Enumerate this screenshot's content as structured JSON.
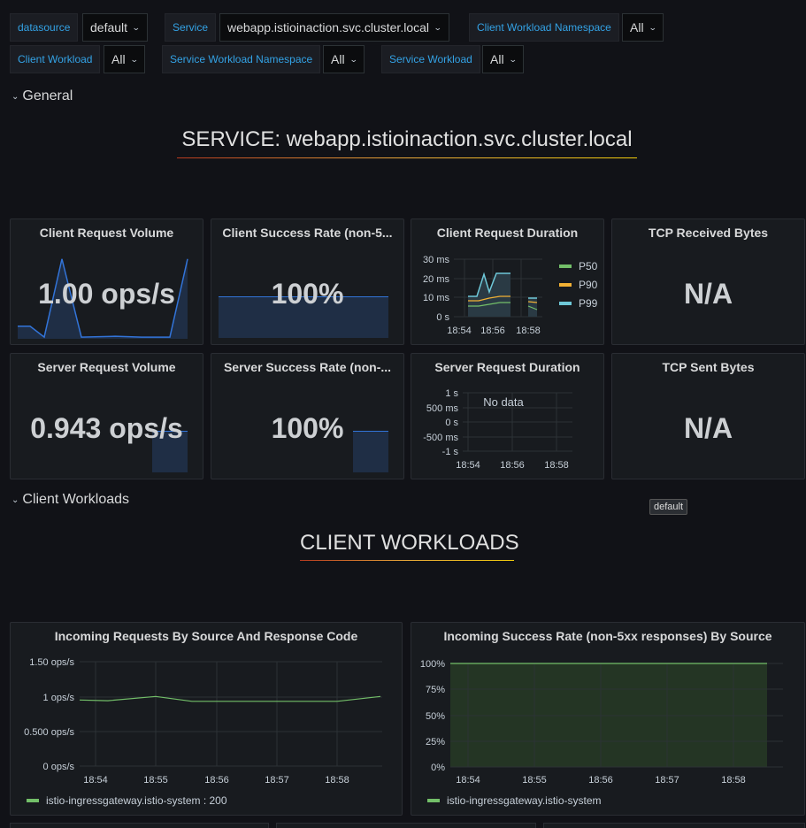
{
  "variables": {
    "datasource": {
      "label": "datasource",
      "value": "default"
    },
    "service": {
      "label": "Service",
      "value": "webapp.istioinaction.svc.cluster.local"
    },
    "client_workload_namespace": {
      "label": "Client Workload Namespace",
      "value": "All"
    },
    "client_workload": {
      "label": "Client Workload",
      "value": "All"
    },
    "service_workload_namespace": {
      "label": "Service Workload Namespace",
      "value": "All"
    },
    "service_workload": {
      "label": "Service Workload",
      "value": "All"
    }
  },
  "rows": {
    "general": "General",
    "client_workloads": "Client Workloads"
  },
  "text_panels": {
    "service_title": "SERVICE: webapp.istioinaction.svc.cluster.local",
    "client_workloads_title": "CLIENT WORKLOADS"
  },
  "tooltip": "default",
  "panels": {
    "client_request_volume": {
      "title": "Client Request Volume",
      "value": "1.00 ops/s",
      "sparkline": [
        0.15,
        0.15,
        0.02,
        0.95,
        0.02,
        0.03,
        0.02,
        0.02,
        0.02,
        0.95
      ]
    },
    "client_success_rate": {
      "title": "Client Success Rate (non-5...",
      "value": "100%"
    },
    "client_request_duration": {
      "title": "Client Request Duration",
      "y_ticks": [
        "30 ms",
        "20 ms",
        "10 ms",
        "0 s"
      ],
      "x_ticks": [
        "18:54",
        "18:56",
        "18:58"
      ],
      "legend": [
        {
          "name": "P50",
          "color": "#73bf69"
        },
        {
          "name": "P90",
          "color": "#f2b134"
        },
        {
          "name": "P99",
          "color": "#6ec8d8"
        }
      ]
    },
    "tcp_received_bytes": {
      "title": "TCP Received Bytes",
      "value": "N/A"
    },
    "server_request_volume": {
      "title": "Server Request Volume",
      "value": "0.943 ops/s"
    },
    "server_success_rate": {
      "title": "Server Success Rate (non-...",
      "value": "100%"
    },
    "server_request_duration": {
      "title": "Server Request Duration",
      "y_ticks": [
        "1 s",
        "500 ms",
        "0 s",
        "-500 ms",
        "-1 s"
      ],
      "x_ticks": [
        "18:54",
        "18:56",
        "18:58"
      ],
      "no_data": "No data"
    },
    "tcp_sent_bytes": {
      "title": "TCP Sent Bytes",
      "value": "N/A"
    },
    "incoming_requests": {
      "title": "Incoming Requests By Source And Response Code",
      "y_ticks": [
        "1.50 ops/s",
        "1 ops/s",
        "0.500 ops/s",
        "0 ops/s"
      ],
      "x_ticks": [
        "18:54",
        "18:55",
        "18:56",
        "18:57",
        "18:58"
      ],
      "legend": "istio-ingressgateway.istio-system : 200"
    },
    "incoming_success_rate": {
      "title": "Incoming Success Rate (non-5xx responses) By Source",
      "y_ticks": [
        "100%",
        "75%",
        "50%",
        "25%",
        "0%"
      ],
      "x_ticks": [
        "18:54",
        "18:55",
        "18:56",
        "18:57",
        "18:58"
      ],
      "legend": "istio-ingressgateway.istio-system"
    }
  },
  "chart_data": [
    {
      "type": "line",
      "title": "Incoming Requests By Source And Response Code",
      "x": [
        "18:54",
        "18:54:30",
        "18:55",
        "18:55:30",
        "18:56",
        "18:57",
        "18:58",
        "18:58:30"
      ],
      "series": [
        {
          "name": "istio-ingressgateway.istio-system : 200",
          "values": [
            0.95,
            0.94,
            1.0,
            0.93,
            0.93,
            0.93,
            0.93,
            1.0
          ]
        }
      ],
      "ylim": [
        0,
        1.5
      ]
    },
    {
      "type": "area",
      "title": "Incoming Success Rate (non-5xx responses) By Source",
      "x": [
        "18:54",
        "18:55",
        "18:56",
        "18:57",
        "18:58"
      ],
      "series": [
        {
          "name": "istio-ingressgateway.istio-system",
          "values": [
            100,
            100,
            100,
            100,
            100
          ]
        }
      ],
      "ylim": [
        0,
        100
      ]
    }
  ],
  "colors": {
    "green": "#73bf69",
    "blue_fill": "#1f2e45",
    "blue_line": "#3274d9",
    "label_blue": "#33a2e5"
  }
}
